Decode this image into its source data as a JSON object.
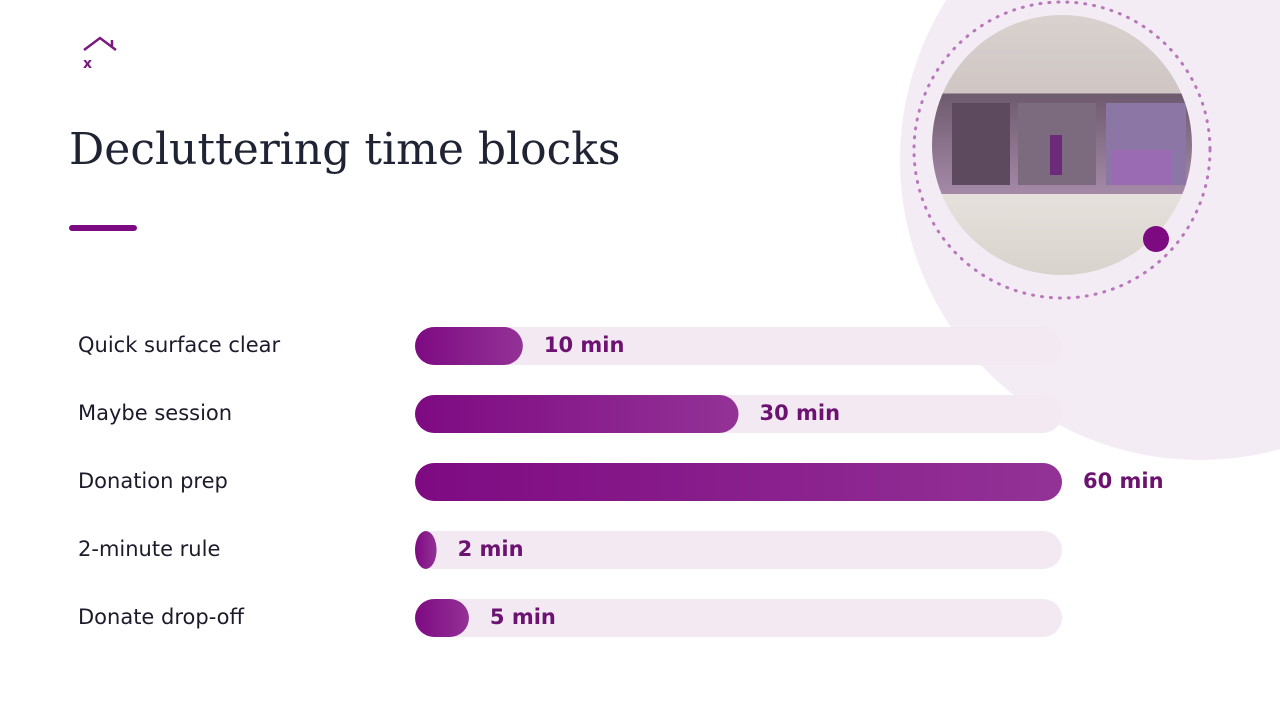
{
  "logo_text": "x",
  "chart_data": {
    "type": "bar",
    "orientation": "horizontal",
    "title": "Decluttering time blocks",
    "categories": [
      "Quick surface clear",
      "Maybe session",
      "Donation prep",
      "2-minute rule",
      "Donate drop-off"
    ],
    "values": [
      10,
      30,
      60,
      2,
      5
    ],
    "value_labels": [
      "10 min",
      "30 min",
      "60 min",
      "2 min",
      "5 min"
    ],
    "xlim": [
      0,
      60
    ],
    "color": "#7e0a82",
    "track_color": "#f3e9f3"
  }
}
